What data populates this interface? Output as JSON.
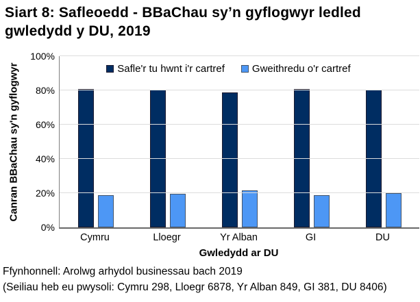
{
  "title": "Siart 8: Safleoedd - BBaChau sy’n gyflogwyr ledled gwledydd y DU, 2019",
  "chart_data": {
    "type": "bar",
    "categories": [
      "Cymru",
      "Lloegr",
      "Yr Alban",
      "GI",
      "DU"
    ],
    "series": [
      {
        "name": "Safle'r tu hwnt i'r cartref",
        "color": "#002D62",
        "border": "#1A1A2E",
        "values": [
          81,
          80.5,
          79,
          81,
          80.5
        ]
      },
      {
        "name": "Gweithredu o'r cartref",
        "color": "#4D97F5",
        "border": "#44546A",
        "values": [
          19,
          19.5,
          21.5,
          19,
          20
        ]
      }
    ],
    "xlabel": "Gwledydd ar DU",
    "ylabel": "Canran BBaChau sy'n gyflogwyr",
    "ylim": [
      0,
      100
    ],
    "yticks": [
      0,
      20,
      40,
      60,
      80,
      100
    ],
    "ytick_labels": [
      "0%",
      "20%",
      "40%",
      "60%",
      "80%",
      "100%"
    ],
    "grid": true,
    "legend_position": "top-center",
    "gridline_color": "#dcdcdc"
  },
  "footer": {
    "source_line": "Ffynhonnell: Arolwg arhydol businessau bach 2019",
    "bases_line": "(Seiliau heb eu pwysoli: Cymru 298, Lloegr 6878, Yr Alban 849, GI 381, DU 8406)"
  }
}
